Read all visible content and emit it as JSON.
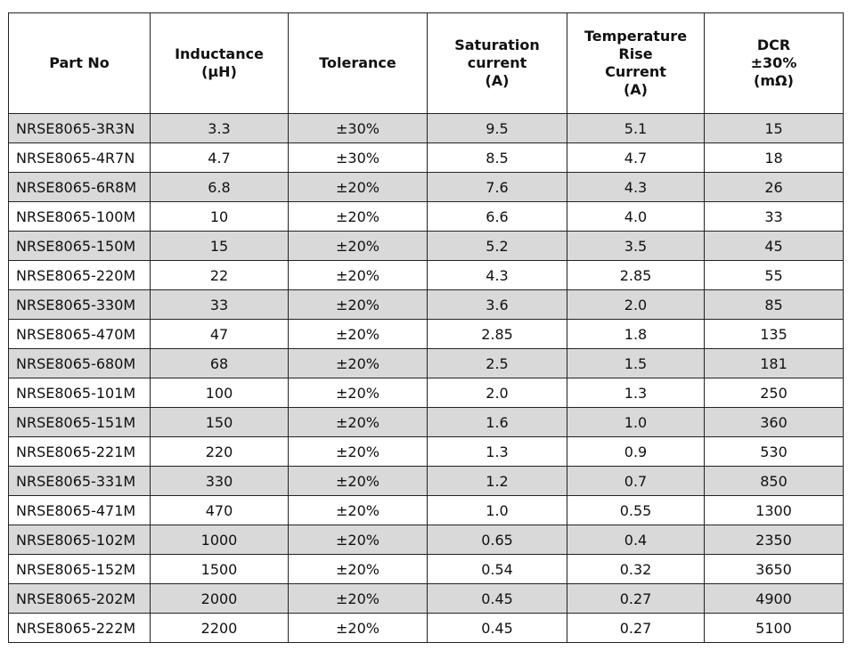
{
  "table": {
    "headers": [
      [
        "Part No"
      ],
      [
        "Inductance",
        "(µH)"
      ],
      [
        "Tolerance"
      ],
      [
        "Saturation",
        "current",
        "(A)"
      ],
      [
        "Temperature Rise",
        "Current",
        "(A)"
      ],
      [
        "DCR",
        "±30%",
        "(mΩ)"
      ]
    ],
    "rows": [
      [
        "NRSE8065-3R3N",
        "3.3",
        "±30%",
        "9.5",
        "5.1",
        "15"
      ],
      [
        "NRSE8065-4R7N",
        "4.7",
        "±30%",
        "8.5",
        "4.7",
        "18"
      ],
      [
        "NRSE8065-6R8M",
        "6.8",
        "±20%",
        "7.6",
        "4.3",
        "26"
      ],
      [
        "NRSE8065-100M",
        "10",
        "±20%",
        "6.6",
        "4.0",
        "33"
      ],
      [
        "NRSE8065-150M",
        "15",
        "±20%",
        "5.2",
        "3.5",
        "45"
      ],
      [
        "NRSE8065-220M",
        "22",
        "±20%",
        "4.3",
        "2.85",
        "55"
      ],
      [
        "NRSE8065-330M",
        "33",
        "±20%",
        "3.6",
        "2.0",
        "85"
      ],
      [
        "NRSE8065-470M",
        "47",
        "±20%",
        "2.85",
        "1.8",
        "135"
      ],
      [
        "NRSE8065-680M",
        "68",
        "±20%",
        "2.5",
        "1.5",
        "181"
      ],
      [
        "NRSE8065-101M",
        "100",
        "±20%",
        "2.0",
        "1.3",
        "250"
      ],
      [
        "NRSE8065-151M",
        "150",
        "±20%",
        "1.6",
        "1.0",
        "360"
      ],
      [
        "NRSE8065-221M",
        "220",
        "±20%",
        "1.3",
        "0.9",
        "530"
      ],
      [
        "NRSE8065-331M",
        "330",
        "±20%",
        "1.2",
        "0.7",
        "850"
      ],
      [
        "NRSE8065-471M",
        "470",
        "±20%",
        "1.0",
        "0.55",
        "1300"
      ],
      [
        "NRSE8065-102M",
        "1000",
        "±20%",
        "0.65",
        "0.4",
        "2350"
      ],
      [
        "NRSE8065-152M",
        "1500",
        "±20%",
        "0.54",
        "0.32",
        "3650"
      ],
      [
        "NRSE8065-202M",
        "2000",
        "±20%",
        "0.45",
        "0.27",
        "4900"
      ],
      [
        "NRSE8065-222M",
        "2200",
        "±20%",
        "0.45",
        "0.27",
        "5100"
      ]
    ]
  }
}
